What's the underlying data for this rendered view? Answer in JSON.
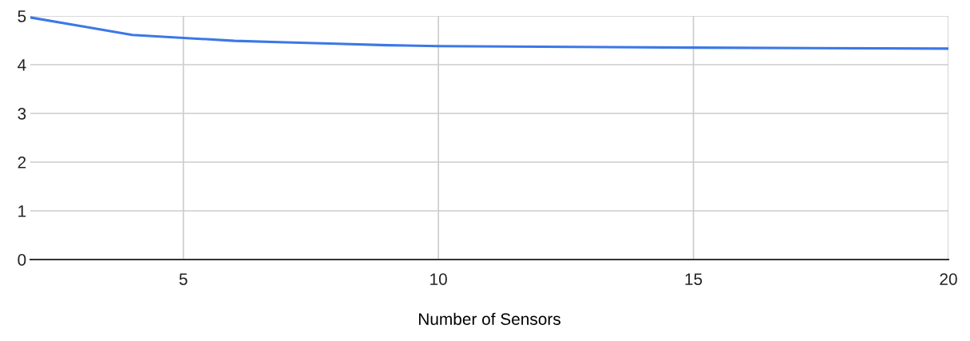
{
  "chart_data": {
    "type": "line",
    "xlabel": "Number of Sensors",
    "x": [
      2,
      3,
      4,
      5,
      6,
      7,
      8,
      9,
      10,
      12,
      15,
      20
    ],
    "series": [
      {
        "color": "#3b78e7",
        "values": [
          4.97,
          4.79,
          4.61,
          4.55,
          4.49,
          4.46,
          4.43,
          4.4,
          4.38,
          4.37,
          4.35,
          4.33
        ]
      }
    ],
    "xlim": [
      2,
      20
    ],
    "xticks": [
      5,
      10,
      15,
      20
    ],
    "ylim": [
      0,
      5
    ],
    "yticks": [
      0,
      1,
      2,
      3,
      4,
      5
    ],
    "grid": true,
    "marker": "none",
    "line_style": "solid"
  }
}
